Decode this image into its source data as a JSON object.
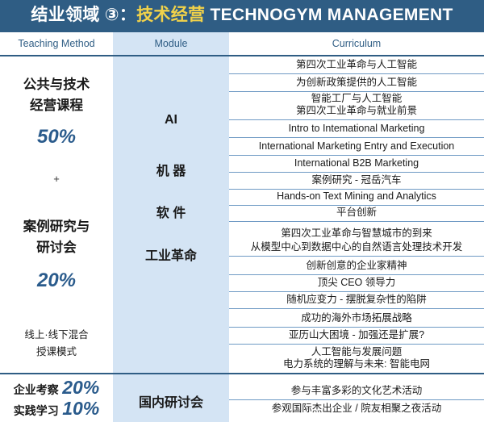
{
  "banner": {
    "prefix": "结业领域 ③：",
    "highlight": "技术经营",
    "suffix": " TECHNOGYM MANAGEMENT"
  },
  "headers": {
    "teaching_method": "Teaching Method",
    "module": "Module",
    "curriculum": "Curriculum"
  },
  "teaching": {
    "course_line1": "公共与技术",
    "course_line2": "经营课程",
    "course_pct": "50%",
    "plus": "+",
    "case_line1": "案例研究与",
    "case_line2": "研讨会",
    "case_pct": "20%",
    "mode_line1": "线上·线下混合",
    "mode_line2": "授课模式"
  },
  "modules": {
    "ai": "AI",
    "robot": "机 器",
    "software": "软 件",
    "industrial": "工业革命",
    "domestic_seminar": "国内研讨会"
  },
  "evaluation": {
    "company_label": "企业考察",
    "company_pct": "20%",
    "practice_label": "实践学习",
    "practice_pct": "10%"
  },
  "curriculum": [
    "第四次工业革命与人工智能",
    "为创新政策提供的人工智能",
    "智能工厂与人工智能",
    "第四次工业革命与就业前景",
    "Intro to Intemational Marketing",
    "International Marketing Entry and Execution",
    "International B2B Marketing",
    "案例研究 - 冠岳汽车",
    "Hands-on Text Mining and Analytics",
    "平台创新",
    "第四次工业革命与智慧城市的到来",
    "从模型中心到数据中心的自然语言处理技术开发",
    "创新创意的企业家精神",
    "顶尖 CEO 领导力",
    "随机应变力 - 摆脱复杂性的陷阱",
    "成功的海外市场拓展战略",
    "亚历山大困境 - 加强还是扩展?",
    "人工智能与发展问题",
    "电力系统的理解与未来: 智能电网",
    "参与丰富多彩的文化艺术活动",
    "参观国际杰出企业 / 院友相聚之夜活动"
  ],
  "colors": {
    "banner": "#2f5d84",
    "highlight": "#f1d24a",
    "module_bg": "#d4e4f4",
    "percent": "#2a5b8c",
    "separator": "#6f9ac4"
  }
}
